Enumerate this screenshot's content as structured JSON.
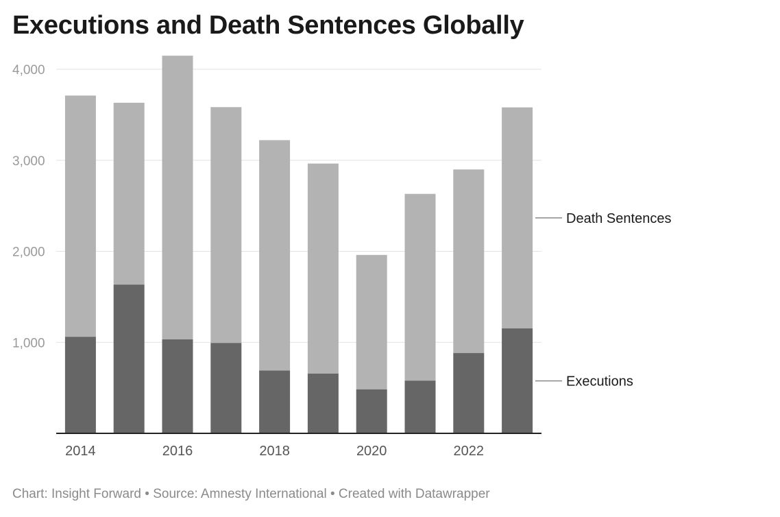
{
  "title": "Executions and Death Sentences Globally",
  "footer": {
    "chart_prefix": "Chart: ",
    "chart_credit": "Insight Forward",
    "source_prefix": "Source: ",
    "source": "Amnesty International",
    "created_with": "Created with Datawrapper",
    "separator": " • "
  },
  "chart_data": {
    "type": "bar",
    "stacked": true,
    "categories": [
      "2014",
      "2015",
      "2016",
      "2017",
      "2018",
      "2019",
      "2020",
      "2021",
      "2022",
      "2023"
    ],
    "x_tick_labels": [
      "2014",
      "2016",
      "2018",
      "2020",
      "2022"
    ],
    "series": [
      {
        "name": "Executions",
        "color": "#666666",
        "values": [
          1061,
          1634,
          1032,
          993,
          690,
          657,
          483,
          579,
          883,
          1153
        ]
      },
      {
        "name": "Death Sentences",
        "color": "#b3b3b3",
        "values": [
          2650,
          1998,
          3117,
          2591,
          2531,
          2307,
          1477,
          2052,
          2016,
          2428
        ]
      }
    ],
    "totals": [
      3711,
      3632,
      4149,
      3584,
      3221,
      2964,
      1960,
      2631,
      2899,
      3581
    ],
    "y_ticks": [
      1000,
      2000,
      3000,
      4000
    ],
    "y_tick_labels": [
      "1,000",
      "2,000",
      "3,000",
      "4,000"
    ],
    "ylim": [
      0,
      4200
    ],
    "grid": true,
    "legend_placement": "right, inline labels"
  }
}
